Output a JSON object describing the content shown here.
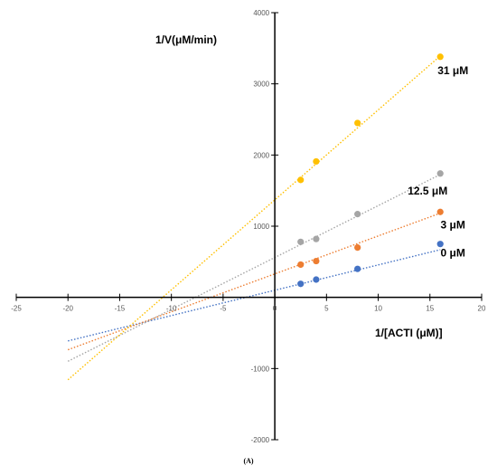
{
  "chart_data": {
    "type": "scatter",
    "xlabel": "1/[ACTI (μM)]",
    "ylabel": "1/V(μM/min)",
    "caption": "(A)",
    "xlim": [
      -25,
      20
    ],
    "ylim": [
      -2000,
      4000
    ],
    "x_ticks": [
      -25,
      -20,
      -15,
      -10,
      -5,
      0,
      5,
      10,
      15,
      20
    ],
    "y_ticks": [
      -2000,
      -1000,
      0,
      1000,
      2000,
      3000,
      4000
    ],
    "trendline_x_range": [
      -20,
      16
    ],
    "grid": false,
    "series": [
      {
        "name": "0 μM",
        "color": "#4472C4",
        "x": [
          2.5,
          4,
          8,
          16
        ],
        "y": [
          190,
          250,
          400,
          750
        ],
        "slope": 35.6,
        "intercept": 100
      },
      {
        "name": "3 μM",
        "color": "#ED7D31",
        "x": [
          2.5,
          4,
          8,
          16
        ],
        "y": [
          460,
          510,
          700,
          1200
        ],
        "slope": 53.3,
        "intercept": 330
      },
      {
        "name": "12.5 μM",
        "color": "#A5A5A5",
        "x": [
          2.5,
          4,
          8,
          16
        ],
        "y": [
          780,
          820,
          1170,
          1740
        ],
        "slope": 72.9,
        "intercept": 560
      },
      {
        "name": "31 μM",
        "color": "#FFC000",
        "x": [
          2.5,
          4,
          8,
          16
        ],
        "y": [
          1650,
          1910,
          2450,
          3380
        ],
        "slope": 126.4,
        "intercept": 1370
      }
    ]
  }
}
